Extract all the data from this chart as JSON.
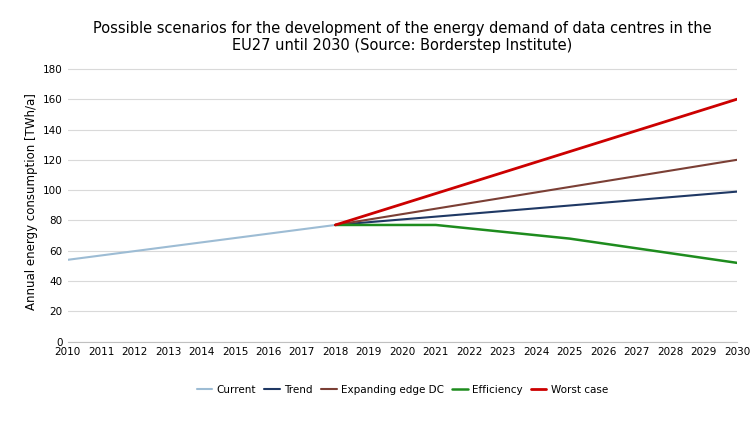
{
  "title": "Possible scenarios for the development of the energy demand of data centres in the\nEU27 until 2030 (Source: Borderstep Institute)",
  "ylabel": "Annual energy consumption [TWh/a]",
  "ylim": [
    0,
    185
  ],
  "yticks": [
    0,
    20,
    40,
    60,
    80,
    100,
    120,
    140,
    160,
    180
  ],
  "xlim": [
    2010,
    2030
  ],
  "xticks": [
    2010,
    2011,
    2012,
    2013,
    2014,
    2015,
    2016,
    2017,
    2018,
    2019,
    2020,
    2021,
    2022,
    2023,
    2024,
    2025,
    2026,
    2027,
    2028,
    2029,
    2030
  ],
  "series": [
    {
      "label": "Current",
      "color": "#9dbcd4",
      "linewidth": 1.5,
      "x": [
        2010,
        2018
      ],
      "y": [
        54,
        77
      ]
    },
    {
      "label": "Trend",
      "color": "#1f3864",
      "linewidth": 1.5,
      "x": [
        2018,
        2030
      ],
      "y": [
        77,
        99
      ]
    },
    {
      "label": "Expanding edge DC",
      "color": "#7b3f35",
      "linewidth": 1.5,
      "x": [
        2018,
        2030
      ],
      "y": [
        77,
        120
      ]
    },
    {
      "label": "Efficiency",
      "color": "#1e8c1e",
      "linewidth": 1.8,
      "x": [
        2018,
        2021,
        2025,
        2030
      ],
      "y": [
        77,
        77,
        68,
        52
      ]
    },
    {
      "label": "Worst case",
      "color": "#cc0000",
      "linewidth": 2.0,
      "x": [
        2018,
        2030
      ],
      "y": [
        77,
        160
      ]
    }
  ],
  "background_color": "#ffffff",
  "grid_color": "#d9d9d9",
  "title_fontsize": 10.5,
  "label_fontsize": 8.5,
  "tick_fontsize": 7.5
}
